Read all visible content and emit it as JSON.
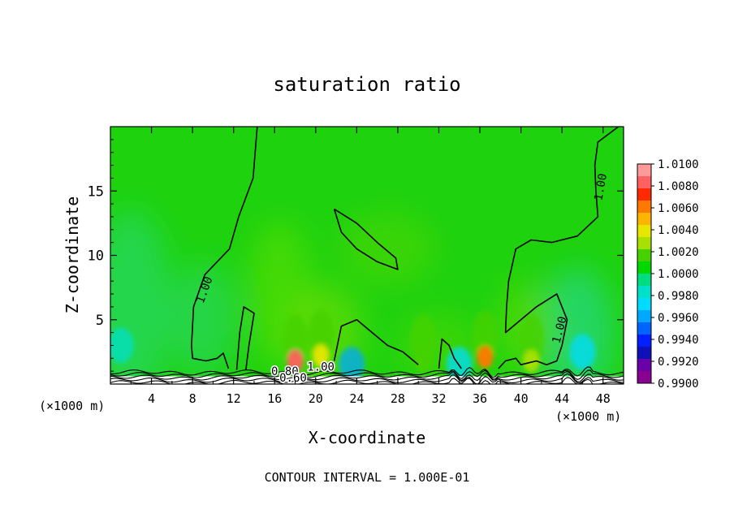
{
  "chart_data": {
    "type": "heatmap",
    "title": "saturation ratio",
    "xlabel": "X-coordinate",
    "ylabel": "Z-coordinate",
    "x_unit_left": "(×1000 m)",
    "x_unit_right": "(×1000 m)",
    "footer": "CONTOUR INTERVAL = 1.000E-01",
    "xlim": [
      0,
      50
    ],
    "ylim": [
      0,
      20
    ],
    "x_ticks": [
      4,
      8,
      12,
      16,
      20,
      24,
      28,
      32,
      36,
      40,
      44,
      48
    ],
    "y_ticks": [
      5,
      10,
      15
    ],
    "colorbar": {
      "labels": [
        "1.0100",
        "1.0080",
        "1.0060",
        "1.0040",
        "1.0020",
        "1.0000",
        "0.9980",
        "0.9960",
        "0.9940",
        "0.9920",
        "0.9900"
      ],
      "colors": [
        "#ff9a9a",
        "#ff6060",
        "#ff2a00",
        "#ff7800",
        "#ffb400",
        "#e6e600",
        "#a8e000",
        "#45d200",
        "#00d800",
        "#00dd80",
        "#00e0c8",
        "#00dcff",
        "#00a8ff",
        "#0064ff",
        "#0020ff",
        "#1010b8",
        "#6a00a8",
        "#8a0090"
      ]
    },
    "contour_labels": [
      "1.00",
      "1.00",
      "1.00",
      "0.80",
      "0.60",
      "1.00"
    ],
    "hot_spots": [
      {
        "x": 18,
        "z": 1.2,
        "value": 1.008
      },
      {
        "x": 20.5,
        "z": 1.6,
        "value": 1.004
      },
      {
        "x": 36.5,
        "z": 1.5,
        "value": 1.006
      },
      {
        "x": 41,
        "z": 1.2,
        "value": 1.003
      },
      {
        "x": 30.5,
        "z": 1.2,
        "value": 1.002
      }
    ],
    "cool_spots": [
      {
        "x": 1,
        "z": 3,
        "value": 0.998
      },
      {
        "x": 23.5,
        "z": 1.5,
        "value": 0.996
      },
      {
        "x": 46,
        "z": 2.5,
        "value": 0.997
      },
      {
        "x": 34,
        "z": 1.5,
        "value": 0.997
      }
    ],
    "contours": [
      {
        "label": "1.00",
        "points": [
          [
            14.3,
            20
          ],
          [
            13.9,
            16
          ],
          [
            12.5,
            13
          ],
          [
            11.6,
            10.5
          ],
          [
            9.2,
            8.5
          ],
          [
            8.1,
            6
          ],
          [
            7.9,
            3
          ],
          [
            8,
            2
          ],
          [
            9.3,
            1.8
          ],
          [
            10.4,
            2
          ],
          [
            11,
            2.4
          ],
          [
            11.5,
            1.2
          ]
        ]
      },
      {
        "label": "",
        "points": [
          [
            12.3,
            1.1
          ],
          [
            12.6,
            4
          ],
          [
            13,
            6
          ],
          [
            14,
            5.5
          ],
          [
            13.5,
            3
          ],
          [
            13.2,
            1.1
          ]
        ]
      },
      {
        "label": "",
        "points": [
          [
            21.8,
            13.6
          ],
          [
            24,
            12.5
          ],
          [
            26,
            11
          ],
          [
            27.8,
            9.8
          ],
          [
            28,
            8.9
          ],
          [
            26,
            9.5
          ],
          [
            24,
            10.5
          ],
          [
            22.5,
            11.8
          ],
          [
            21.8,
            13.6
          ]
        ]
      },
      {
        "label": "",
        "points": [
          [
            21.8,
            1.8
          ],
          [
            22.5,
            4.5
          ],
          [
            24,
            5
          ],
          [
            25.5,
            4
          ],
          [
            27,
            3
          ],
          [
            28.5,
            2.5
          ],
          [
            30,
            1.5
          ]
        ]
      },
      {
        "label": "",
        "points": [
          [
            32,
            1.2
          ],
          [
            32.3,
            3.5
          ],
          [
            33,
            3
          ],
          [
            33.5,
            2
          ],
          [
            34.2,
            1.2
          ]
        ]
      },
      {
        "label": "1.00",
        "points": [
          [
            37.8,
            1.2
          ],
          [
            38.5,
            1.8
          ],
          [
            39.5,
            2
          ],
          [
            40,
            1.5
          ],
          [
            41.5,
            1.8
          ],
          [
            42.5,
            1.5
          ],
          [
            43.5,
            1.8
          ],
          [
            44,
            3
          ],
          [
            44.5,
            5
          ],
          [
            43.5,
            7
          ],
          [
            41.5,
            6
          ],
          [
            40,
            5
          ],
          [
            38.5,
            4
          ],
          [
            38.6,
            6
          ],
          [
            38.8,
            8
          ],
          [
            39.5,
            10.5
          ],
          [
            41,
            11.2
          ],
          [
            43,
            11
          ],
          [
            45.5,
            11.5
          ],
          [
            47.5,
            13
          ],
          [
            47.3,
            15
          ],
          [
            47.2,
            17
          ],
          [
            47.5,
            18.8
          ],
          [
            49.5,
            20
          ]
        ]
      }
    ]
  }
}
